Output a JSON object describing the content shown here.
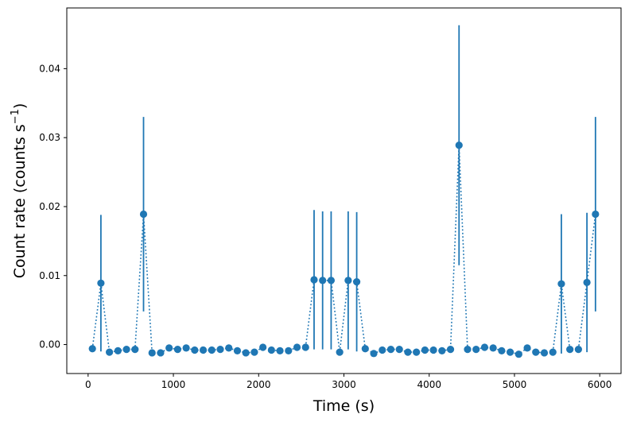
{
  "chart_data": {
    "type": "scatter",
    "title": "",
    "xlabel": "Time (s)",
    "ylabel_main": "Count rate (counts s",
    "ylabel_sup": "−1",
    "ylabel_tail": ")",
    "xlim": [
      -250,
      6250
    ],
    "ylim": [
      -0.0042,
      0.0488
    ],
    "xticks": [
      0,
      1000,
      2000,
      3000,
      4000,
      5000,
      6000
    ],
    "xtick_labels": [
      "0",
      "1000",
      "2000",
      "3000",
      "4000",
      "5000",
      "6000"
    ],
    "yticks": [
      0.0,
      0.01,
      0.02,
      0.03,
      0.04
    ],
    "ytick_labels": [
      "0.00",
      "0.01",
      "0.02",
      "0.03",
      "0.04"
    ],
    "grid": false,
    "color": "#1f77b4",
    "line_style": "dotted",
    "marker": "circle",
    "points": [
      {
        "x": 50,
        "y": -0.0006,
        "err": 0
      },
      {
        "x": 150,
        "y": 0.0089,
        "err": 0.0099
      },
      {
        "x": 250,
        "y": -0.0011,
        "err": 0
      },
      {
        "x": 350,
        "y": -0.0009,
        "err": 0
      },
      {
        "x": 450,
        "y": -0.0007,
        "err": 0
      },
      {
        "x": 550,
        "y": -0.0007,
        "err": 0
      },
      {
        "x": 650,
        "y": 0.0189,
        "err": 0.0141
      },
      {
        "x": 750,
        "y": -0.0012,
        "err": 0
      },
      {
        "x": 850,
        "y": -0.0012,
        "err": 0
      },
      {
        "x": 950,
        "y": -0.0005,
        "err": 0
      },
      {
        "x": 1050,
        "y": -0.0007,
        "err": 0
      },
      {
        "x": 1150,
        "y": -0.0005,
        "err": 0
      },
      {
        "x": 1250,
        "y": -0.0008,
        "err": 0
      },
      {
        "x": 1350,
        "y": -0.0008,
        "err": 0
      },
      {
        "x": 1450,
        "y": -0.0008,
        "err": 0
      },
      {
        "x": 1550,
        "y": -0.0007,
        "err": 0
      },
      {
        "x": 1650,
        "y": -0.0005,
        "err": 0
      },
      {
        "x": 1750,
        "y": -0.0009,
        "err": 0
      },
      {
        "x": 1850,
        "y": -0.0012,
        "err": 0
      },
      {
        "x": 1950,
        "y": -0.0011,
        "err": 0
      },
      {
        "x": 2050,
        "y": -0.0004,
        "err": 0
      },
      {
        "x": 2150,
        "y": -0.0008,
        "err": 0
      },
      {
        "x": 2250,
        "y": -0.0009,
        "err": 0
      },
      {
        "x": 2350,
        "y": -0.0009,
        "err": 0
      },
      {
        "x": 2450,
        "y": -0.0004,
        "err": 0
      },
      {
        "x": 2550,
        "y": -0.0004,
        "err": 0
      },
      {
        "x": 2650,
        "y": 0.0094,
        "err": 0.0101
      },
      {
        "x": 2750,
        "y": 0.0093,
        "err": 0.01
      },
      {
        "x": 2850,
        "y": 0.0093,
        "err": 0.01
      },
      {
        "x": 2950,
        "y": -0.0011,
        "err": 0
      },
      {
        "x": 3050,
        "y": 0.0093,
        "err": 0.01
      },
      {
        "x": 3150,
        "y": 0.0091,
        "err": 0.0101
      },
      {
        "x": 3250,
        "y": -0.0006,
        "err": 0
      },
      {
        "x": 3350,
        "y": -0.0013,
        "err": 0
      },
      {
        "x": 3450,
        "y": -0.0008,
        "err": 0
      },
      {
        "x": 3550,
        "y": -0.0007,
        "err": 0
      },
      {
        "x": 3650,
        "y": -0.0007,
        "err": 0
      },
      {
        "x": 3750,
        "y": -0.0011,
        "err": 0
      },
      {
        "x": 3850,
        "y": -0.0011,
        "err": 0
      },
      {
        "x": 3950,
        "y": -0.0008,
        "err": 0
      },
      {
        "x": 4050,
        "y": -0.0008,
        "err": 0
      },
      {
        "x": 4150,
        "y": -0.0009,
        "err": 0
      },
      {
        "x": 4250,
        "y": -0.0007,
        "err": 0
      },
      {
        "x": 4350,
        "y": 0.0289,
        "err": 0.0174
      },
      {
        "x": 4450,
        "y": -0.0007,
        "err": 0
      },
      {
        "x": 4550,
        "y": -0.0007,
        "err": 0
      },
      {
        "x": 4650,
        "y": -0.0004,
        "err": 0
      },
      {
        "x": 4750,
        "y": -0.0005,
        "err": 0
      },
      {
        "x": 4850,
        "y": -0.0009,
        "err": 0
      },
      {
        "x": 4950,
        "y": -0.0011,
        "err": 0
      },
      {
        "x": 5050,
        "y": -0.0014,
        "err": 0
      },
      {
        "x": 5150,
        "y": -0.0005,
        "err": 0
      },
      {
        "x": 5250,
        "y": -0.0011,
        "err": 0
      },
      {
        "x": 5350,
        "y": -0.0012,
        "err": 0
      },
      {
        "x": 5450,
        "y": -0.0011,
        "err": 0
      },
      {
        "x": 5550,
        "y": 0.0088,
        "err": 0.0101
      },
      {
        "x": 5650,
        "y": -0.0007,
        "err": 0
      },
      {
        "x": 5750,
        "y": -0.0007,
        "err": 0
      },
      {
        "x": 5850,
        "y": 0.009,
        "err": 0.0101
      },
      {
        "x": 5950,
        "y": 0.0189,
        "err": 0.0141
      }
    ]
  }
}
